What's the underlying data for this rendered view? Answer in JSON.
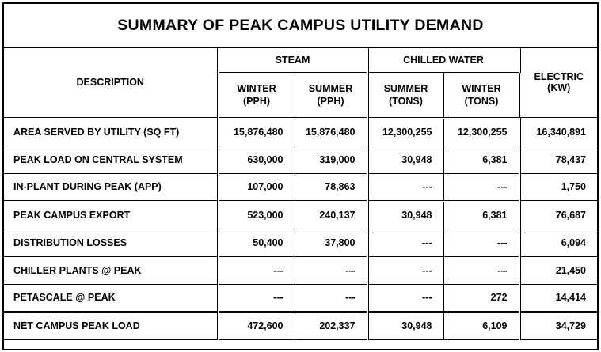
{
  "title": "SUMMARY OF PEAK CAMPUS UTILITY DEMAND",
  "header": {
    "description": "DESCRIPTION",
    "steam": "STEAM",
    "chilled_water": "CHILLED WATER",
    "steam_winter": [
      "WINTER",
      "(PPH)"
    ],
    "steam_summer": [
      "SUMMER",
      "(PPH)"
    ],
    "cw_summer": [
      "SUMMER",
      "(TONS)"
    ],
    "cw_winter": [
      "WINTER",
      "(TONS)"
    ],
    "electric": [
      "ELECTRIC",
      "(KW)"
    ]
  },
  "rows": [
    {
      "label": "AREA SERVED BY UTILITY (SQ FT)",
      "values": [
        "15,876,480",
        "15,876,480",
        "12,300,255",
        "12,300,255",
        "16,340,891"
      ]
    },
    {
      "label": "PEAK LOAD ON CENTRAL SYSTEM",
      "values": [
        "630,000",
        "319,000",
        "30,948",
        "6,381",
        "78,437"
      ]
    },
    {
      "label": "IN-PLANT DURING PEAK (APP)",
      "values": [
        "107,000",
        "78,863",
        "---",
        "---",
        "1,750"
      ]
    },
    {
      "label": "PEAK CAMPUS EXPORT",
      "values": [
        "523,000",
        "240,137",
        "30,948",
        "6,381",
        "76,687"
      ]
    },
    {
      "label": "DISTRIBUTION LOSSES",
      "values": [
        "50,400",
        "37,800",
        "---",
        "---",
        "6,094"
      ]
    },
    {
      "label": "CHILLER PLANTS @ PEAK",
      "values": [
        "---",
        "---",
        "---",
        "---",
        "21,450"
      ]
    },
    {
      "label": "PETASCALE @ PEAK",
      "values": [
        "---",
        "---",
        "---",
        "272",
        "14,414"
      ]
    },
    {
      "label": "NET CAMPUS PEAK LOAD",
      "values": [
        "472,600",
        "202,337",
        "30,948",
        "6,109",
        "34,729"
      ]
    }
  ]
}
